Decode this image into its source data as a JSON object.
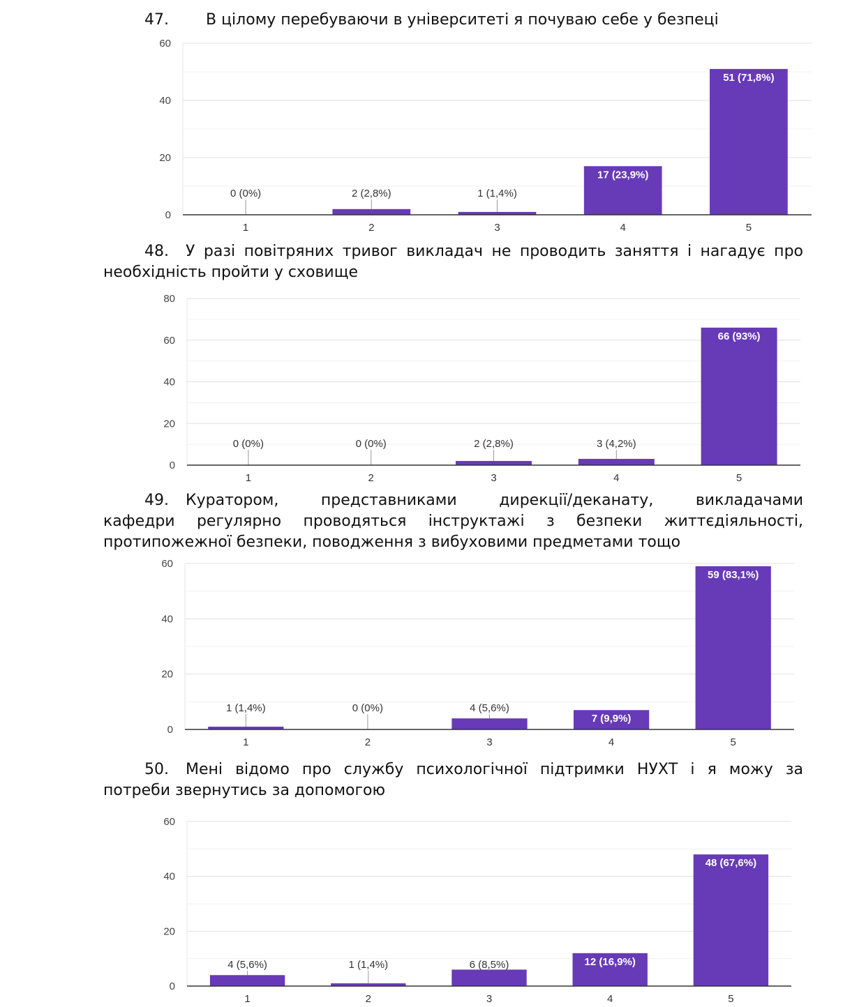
{
  "questions": [
    {
      "number": "47.",
      "lines": [
        "В цілому перебуваючи в університеті я почуваю себе у безпеці"
      ],
      "chart_data": {
        "type": "bar",
        "categories": [
          "1",
          "2",
          "3",
          "4",
          "5"
        ],
        "values": [
          0,
          2,
          1,
          17,
          51
        ],
        "labels": [
          "0 (0%)",
          "2 (2,8%)",
          "1 (1,4%)",
          "17 (23,9%)",
          "51 (71,8%)"
        ],
        "yticks": [
          "0",
          "20",
          "40",
          "60"
        ],
        "ylim": [
          0,
          60
        ],
        "color": "#673ab7"
      }
    },
    {
      "number": "48.",
      "lines": [
        "У разі повітряних тривог викладач не проводить заняття і нагадує про",
        "необхідність пройти у сховище"
      ],
      "chart_data": {
        "type": "bar",
        "categories": [
          "1",
          "2",
          "3",
          "4",
          "5"
        ],
        "values": [
          0,
          0,
          2,
          3,
          66
        ],
        "labels": [
          "0 (0%)",
          "0 (0%)",
          "2 (2,8%)",
          "3 (4,2%)",
          "66 (93%)"
        ],
        "yticks": [
          "0",
          "20",
          "40",
          "60",
          "80"
        ],
        "ylim": [
          0,
          80
        ],
        "color": "#673ab7"
      }
    },
    {
      "number": "49.",
      "lines": [
        "Куратором, представниками дирекції/деканату, викладачами",
        "кафедри регулярно проводяться інструктажі з безпеки життєдіяльності,",
        "протипожежної безпеки, поводження з вибуховими предметами тощо"
      ],
      "chart_data": {
        "type": "bar",
        "categories": [
          "1",
          "2",
          "3",
          "4",
          "5"
        ],
        "values": [
          1,
          0,
          4,
          7,
          59
        ],
        "labels": [
          "1 (1,4%)",
          "0 (0%)",
          "4 (5,6%)",
          "7 (9,9%)",
          "59 (83,1%)"
        ],
        "yticks": [
          "0",
          "20",
          "40",
          "60"
        ],
        "ylim": [
          0,
          60
        ],
        "color": "#673ab7"
      }
    },
    {
      "number": "50.",
      "lines": [
        "Мені відомо про службу психологічної підтримки НУХТ і я можу за",
        "потреби звернутись за допомогою"
      ],
      "chart_data": {
        "type": "bar",
        "categories": [
          "1",
          "2",
          "3",
          "4",
          "5"
        ],
        "values": [
          4,
          1,
          6,
          12,
          48
        ],
        "labels": [
          "4 (5,6%)",
          "1 (1,4%)",
          "6 (8,5%)",
          "12 (16,9%)",
          "48 (67,6%)"
        ],
        "yticks": [
          "0",
          "20",
          "40",
          "60"
        ],
        "ylim": [
          0,
          60
        ],
        "color": "#673ab7"
      }
    }
  ]
}
